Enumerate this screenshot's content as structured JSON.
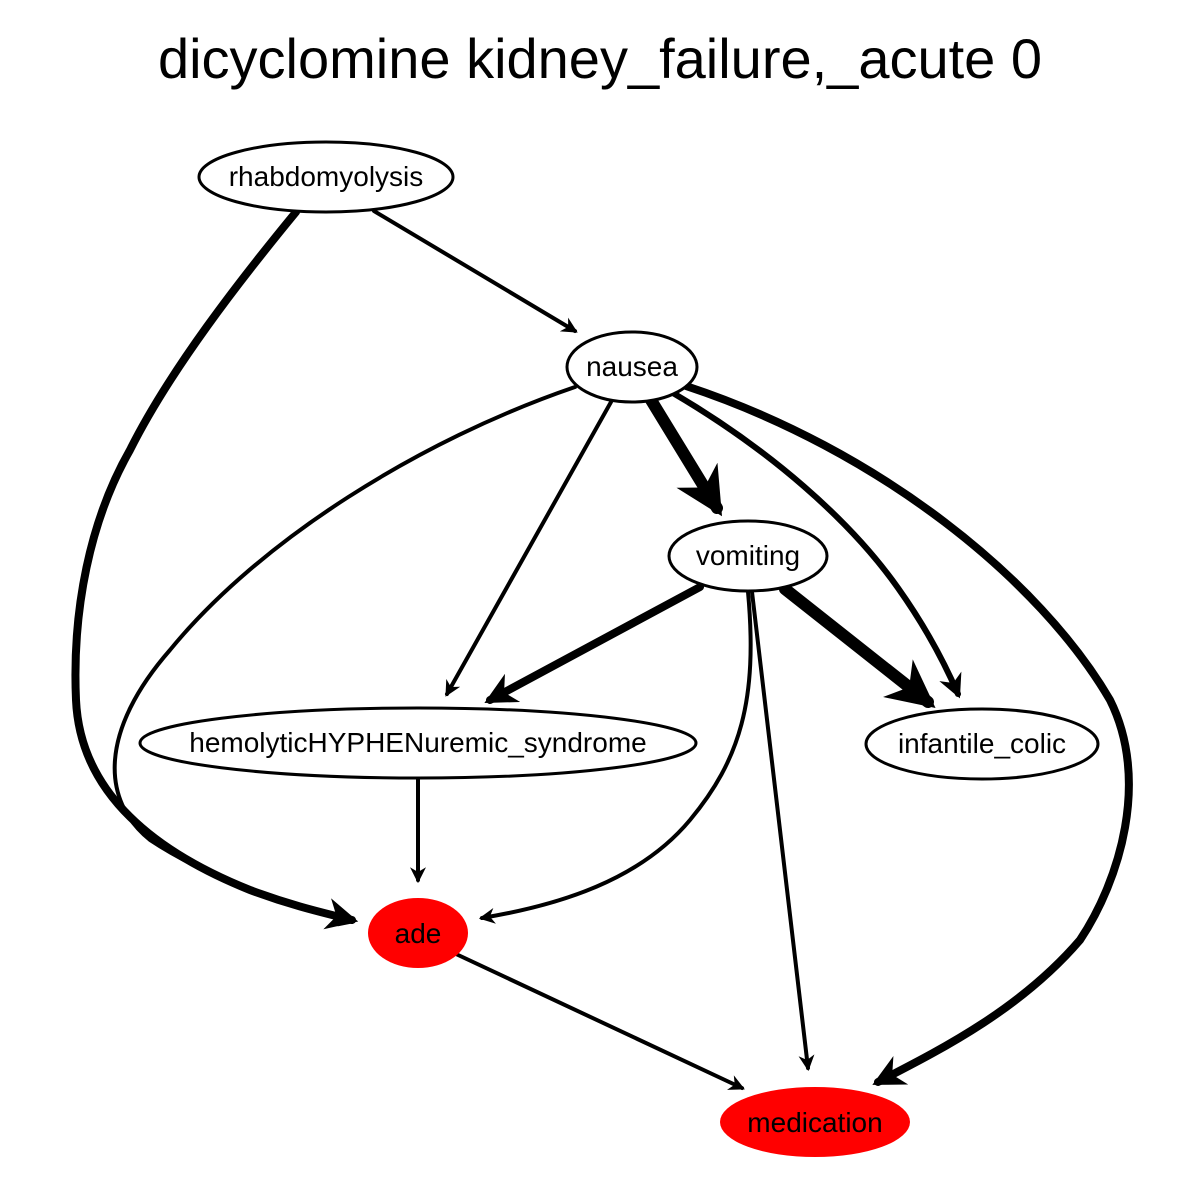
{
  "title": "dicyclomine kidney_failure,_acute 0",
  "colors": {
    "highlight": "#ff0000",
    "node_fill": "#ffffff",
    "stroke": "#000000"
  },
  "nodes": [
    {
      "id": "rhabdomyolysis",
      "label": "rhabdomyolysis",
      "highlighted": false
    },
    {
      "id": "nausea",
      "label": "nausea",
      "highlighted": false
    },
    {
      "id": "vomiting",
      "label": "vomiting",
      "highlighted": false
    },
    {
      "id": "hus",
      "label": "hemolyticHYPHENuremic_syndrome",
      "highlighted": false
    },
    {
      "id": "infantile_colic",
      "label": "infantile_colic",
      "highlighted": false
    },
    {
      "id": "ade",
      "label": "ade",
      "highlighted": true
    },
    {
      "id": "medication",
      "label": "medication",
      "highlighted": true
    }
  ],
  "edges": [
    {
      "from": "rhabdomyolysis",
      "to": "nausea",
      "weight": 1
    },
    {
      "from": "rhabdomyolysis",
      "to": "ade",
      "weight": 2
    },
    {
      "from": "nausea",
      "to": "vomiting",
      "weight": 3
    },
    {
      "from": "nausea",
      "to": "hus",
      "weight": 1
    },
    {
      "from": "nausea",
      "to": "ade",
      "weight": 1
    },
    {
      "from": "nausea",
      "to": "infantile_colic",
      "weight": 1.5
    },
    {
      "from": "nausea",
      "to": "medication",
      "weight": 2
    },
    {
      "from": "vomiting",
      "to": "hus",
      "weight": 2
    },
    {
      "from": "vomiting",
      "to": "infantile_colic",
      "weight": 3
    },
    {
      "from": "vomiting",
      "to": "ade",
      "weight": 1
    },
    {
      "from": "vomiting",
      "to": "medication",
      "weight": 1
    },
    {
      "from": "hus",
      "to": "ade",
      "weight": 1
    },
    {
      "from": "ade",
      "to": "medication",
      "weight": 1
    }
  ]
}
